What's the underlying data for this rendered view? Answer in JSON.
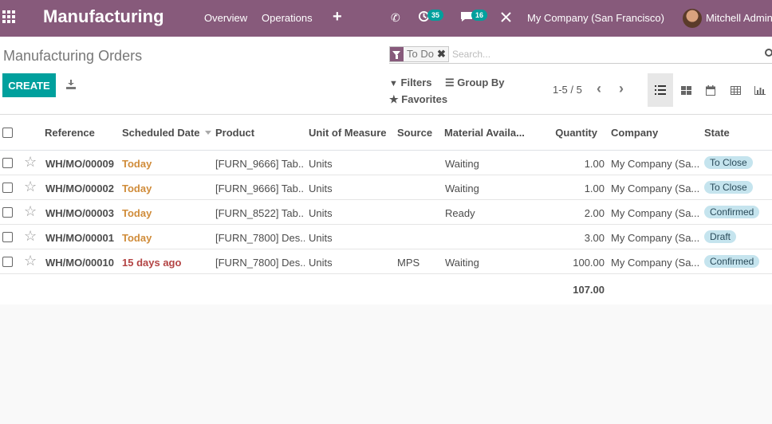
{
  "navbar": {
    "brand": "Manufacturing",
    "menu": [
      "Overview",
      "Operations"
    ],
    "activity_count": "35",
    "message_count": "16",
    "company": "My Company (San Francisco)",
    "user": "Mitchell Admin",
    "accent": "#875a7b"
  },
  "control": {
    "breadcrumb": "Manufacturing Orders",
    "facet": "To Do",
    "search_placeholder": "Search...",
    "create_label": "CREATE",
    "filters_label": "Filters",
    "groupby_label": "Group By",
    "favorites_label": "Favorites",
    "pager": "1-5 / 5"
  },
  "columns": [
    "Reference",
    "Scheduled Date",
    "Product",
    "Unit of Measure",
    "Source",
    "Material Availa...",
    "Quantity",
    "Company",
    "State"
  ],
  "rows": [
    {
      "ref": "WH/MO/00009",
      "date": "Today",
      "late": false,
      "product": "[FURN_9666] Tab...",
      "uom": "Units",
      "source": "",
      "material": "Waiting",
      "qty": "1.00",
      "company": "My Company (Sa...",
      "state": "To Close"
    },
    {
      "ref": "WH/MO/00002",
      "date": "Today",
      "late": false,
      "product": "[FURN_9666] Tab...",
      "uom": "Units",
      "source": "",
      "material": "Waiting",
      "qty": "1.00",
      "company": "My Company (Sa...",
      "state": "To Close"
    },
    {
      "ref": "WH/MO/00003",
      "date": "Today",
      "late": false,
      "product": "[FURN_8522] Tab...",
      "uom": "Units",
      "source": "",
      "material": "Ready",
      "qty": "2.00",
      "company": "My Company (Sa...",
      "state": "Confirmed"
    },
    {
      "ref": "WH/MO/00001",
      "date": "Today",
      "late": false,
      "product": "[FURN_7800] Des...",
      "uom": "Units",
      "source": "",
      "material": "",
      "qty": "3.00",
      "company": "My Company (Sa...",
      "state": "Draft"
    },
    {
      "ref": "WH/MO/00010",
      "date": "15 days ago",
      "late": true,
      "product": "[FURN_7800] Des...",
      "uom": "Units",
      "source": "MPS",
      "material": "Waiting",
      "qty": "100.00",
      "company": "My Company (Sa...",
      "state": "Confirmed"
    }
  ],
  "total_quantity": "107.00"
}
